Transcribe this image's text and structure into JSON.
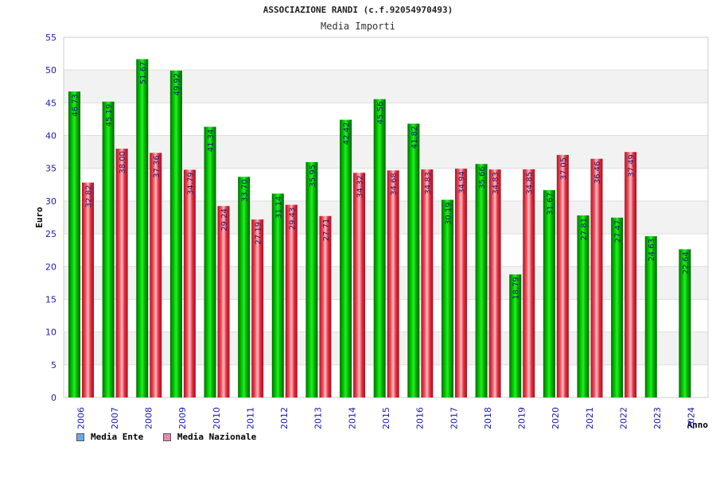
{
  "chart_data": {
    "type": "bar",
    "title": "ASSOCIAZIONE RANDI (c.f.92054970493)",
    "subtitle": "Media Importi",
    "xlabel": "Anno",
    "ylabel": "Euro",
    "ylim": [
      0,
      55
    ],
    "yticks": [
      0,
      5,
      10,
      15,
      20,
      25,
      30,
      35,
      40,
      45,
      50,
      55
    ],
    "grid": true,
    "legend_position": "bottom-left",
    "categories": [
      "2006",
      "2007",
      "2008",
      "2009",
      "2010",
      "2011",
      "2012",
      "2013",
      "2014",
      "2015",
      "2016",
      "2017",
      "2018",
      "2019",
      "2020",
      "2021",
      "2022",
      "2023",
      "2024"
    ],
    "series": [
      {
        "name": "Media Ente",
        "color": "#00b800",
        "legend_color": "#66aaee",
        "values": [
          46.73,
          45.19,
          51.67,
          49.92,
          41.34,
          33.7,
          31.14,
          35.95,
          42.42,
          45.56,
          41.82,
          30.19,
          35.66,
          18.79,
          31.67,
          27.81,
          27.47,
          24.63,
          22.64
        ],
        "labels": [
          "46.73",
          "45.19",
          "51.67",
          "49.92",
          "41.34",
          "33.70",
          "31.14",
          "35.95",
          "42.42",
          "45.56",
          "41.82",
          "30.19",
          "35.66",
          "18.79",
          "31.67",
          "27.81",
          "27.47",
          "24.63",
          "22.64"
        ]
      },
      {
        "name": "Media Nazionale",
        "color": "#e83040",
        "legend_color": "#e888b0",
        "values": [
          32.82,
          38.0,
          37.36,
          34.79,
          29.24,
          27.19,
          29.43,
          27.71,
          34.32,
          34.68,
          34.83,
          34.94,
          34.83,
          34.85,
          37.05,
          36.46,
          37.49,
          null,
          null
        ],
        "labels": [
          "32.82",
          "38.00",
          "37.36",
          "34.79",
          "29.24",
          "27.19",
          "29.43",
          "27.71",
          "34.32",
          "34.68",
          "34.83",
          "34.94",
          "34.83",
          "34.85",
          "37.05",
          "36.46",
          "37.49",
          null,
          null
        ]
      }
    ]
  }
}
